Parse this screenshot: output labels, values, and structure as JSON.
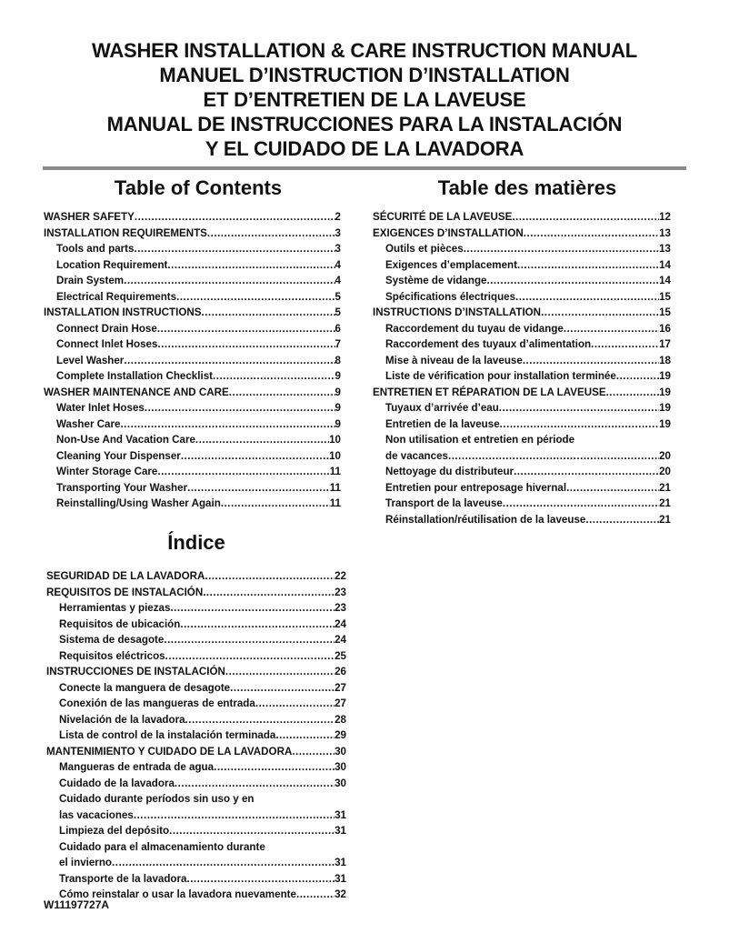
{
  "titles": [
    "WASHER INSTALLATION & CARE INSTRUCTION MANUAL",
    "MANUEL D’INSTRUCTION D’INSTALLATION",
    "ET D’ENTRETIEN DE LA LAVEUSE",
    "MANUAL DE INSTRUCCIONES PARA LA INSTALACIÓN",
    "Y EL CUIDADO DE LA LAVADORA"
  ],
  "toc_en": {
    "heading": "Table of Contents",
    "items": [
      {
        "t": "WASHER SAFETY",
        "p": "2",
        "sub": false
      },
      {
        "t": "INSTALLATION REQUIREMENTS",
        "p": "3",
        "sub": false
      },
      {
        "t": "Tools and parts",
        "p": "3",
        "sub": true
      },
      {
        "t": "Location Requirement",
        "p": "4",
        "sub": true
      },
      {
        "t": "Drain System",
        "p": "4",
        "sub": true
      },
      {
        "t": "Electrical Requirements",
        "p": "5",
        "sub": true
      },
      {
        "t": "INSTALLATION INSTRUCTIONS",
        "p": "5",
        "sub": false
      },
      {
        "t": "Connect Drain Hose",
        "p": "6",
        "sub": true
      },
      {
        "t": "Connect Inlet Hoses",
        "p": "7",
        "sub": true
      },
      {
        "t": "Level Washer",
        "p": "8",
        "sub": true
      },
      {
        "t": "Complete Installation Checklist",
        "p": "9",
        "sub": true
      },
      {
        "t": "WASHER MAINTENANCE AND CARE",
        "p": "9",
        "sub": false
      },
      {
        "t": "Water Inlet Hoses",
        "p": "9",
        "sub": true
      },
      {
        "t": "Washer Care",
        "p": "9",
        "sub": true
      },
      {
        "t": "Non-Use And Vacation Care",
        "p": "10",
        "sub": true
      },
      {
        "t": "Cleaning Your Dispenser",
        "p": "10",
        "sub": true
      },
      {
        "t": "Winter Storage Care",
        "p": "11",
        "sub": true
      },
      {
        "t": "Transporting Your Washer",
        "p": "11",
        "sub": true
      },
      {
        "t": "Reinstalling/Using Washer Again",
        "p": "11",
        "sub": true
      }
    ]
  },
  "toc_fr": {
    "heading": "Table des matières",
    "items": [
      {
        "t": "SÉCURITÉ DE LA LAVEUSE",
        "p": "12",
        "sub": false
      },
      {
        "t": "EXIGENCES D’INSTALLATION",
        "p": "13",
        "sub": false
      },
      {
        "t": "Outils et pièces",
        "p": "13",
        "sub": true
      },
      {
        "t": "Exigences d’emplacement",
        "p": "14",
        "sub": true
      },
      {
        "t": "Système de vidange",
        "p": "14",
        "sub": true
      },
      {
        "t": "Spécifications électriques",
        "p": "15",
        "sub": true
      },
      {
        "t": "INSTRUCTIONS D’INSTALLATION",
        "p": "15",
        "sub": false
      },
      {
        "t": "Raccordement du tuyau de vidange",
        "p": "16",
        "sub": true
      },
      {
        "t": "Raccordement des tuyaux d’alimentation",
        "p": "17",
        "sub": true
      },
      {
        "t": "Mise à niveau de la laveuse",
        "p": "18",
        "sub": true
      },
      {
        "t": "Liste de vérification pour installation terminée",
        "p": "19",
        "sub": true
      },
      {
        "t": "ENTRETIEN ET RÉPARATION DE LA LAVEUSE",
        "p": "19",
        "sub": false
      },
      {
        "t": "Tuyaux d’arrivée d’eau",
        "p": "19",
        "sub": true
      },
      {
        "t": "Entretien de la laveuse",
        "p": "19",
        "sub": true
      },
      {
        "t": "Non utilisation et entretien en période",
        "sub": true
      },
      {
        "t": "de vacances",
        "p": "20",
        "sub": true
      },
      {
        "t": "Nettoyage du distributeur",
        "p": "20",
        "sub": true
      },
      {
        "t": "Entretien pour entreposage hivernal",
        "p": "21",
        "sub": true
      },
      {
        "t": "Transport de la laveuse",
        "p": "21",
        "sub": true
      },
      {
        "t": "Réinstallation/réutilisation de la laveuse",
        "p": "21",
        "sub": true
      }
    ]
  },
  "toc_es": {
    "heading": "Índice",
    "items": [
      {
        "t": "SEGURIDAD DE LA LAVADORA",
        "p": "22",
        "sub": false
      },
      {
        "t": "REQUISITOS DE INSTALACIÓN",
        "p": "23",
        "sub": false
      },
      {
        "t": "Herramientas y piezas",
        "p": "23",
        "sub": true
      },
      {
        "t": "Requisitos de ubicación",
        "p": "24",
        "sub": true
      },
      {
        "t": "Sistema de desagote",
        "p": "24",
        "sub": true
      },
      {
        "t": "Requisitos eléctricos",
        "p": "25",
        "sub": true
      },
      {
        "t": "INSTRUCCIONES DE INSTALACIÓN",
        "p": "26",
        "sub": false
      },
      {
        "t": "Conecte la manguera de desagote",
        "p": "27",
        "sub": true
      },
      {
        "t": "Conexión de las mangueras de entrada",
        "p": "27",
        "sub": true
      },
      {
        "t": "Nivelación de la lavadora",
        "p": "28",
        "sub": true
      },
      {
        "t": "Lista de control de la instalación terminada",
        "p": "29",
        "sub": true
      },
      {
        "t": "MANTENIMIENTO Y CUIDADO DE LA LAVADORA",
        "p": "30",
        "sub": false
      },
      {
        "t": "Mangueras de entrada de agua",
        "p": "30",
        "sub": true
      },
      {
        "t": "Cuidado de la lavadora",
        "p": "30",
        "sub": true
      },
      {
        "t": "Cuidado durante períodos sin uso y en",
        "sub": true
      },
      {
        "t": "las vacaciones",
        "p": "31",
        "sub": true
      },
      {
        "t": "Limpieza del depósito",
        "p": "31",
        "sub": true
      },
      {
        "t": "Cuidado para el almacenamiento durante",
        "sub": true
      },
      {
        "t": "el invierno",
        "p": "31",
        "sub": true
      },
      {
        "t": "Transporte de la lavadora",
        "p": "31",
        "sub": true
      },
      {
        "t": "Cómo reinstalar o usar la lavadora nuevamente",
        "p": "32",
        "sub": true
      }
    ]
  },
  "doc_code": "W11197727A"
}
